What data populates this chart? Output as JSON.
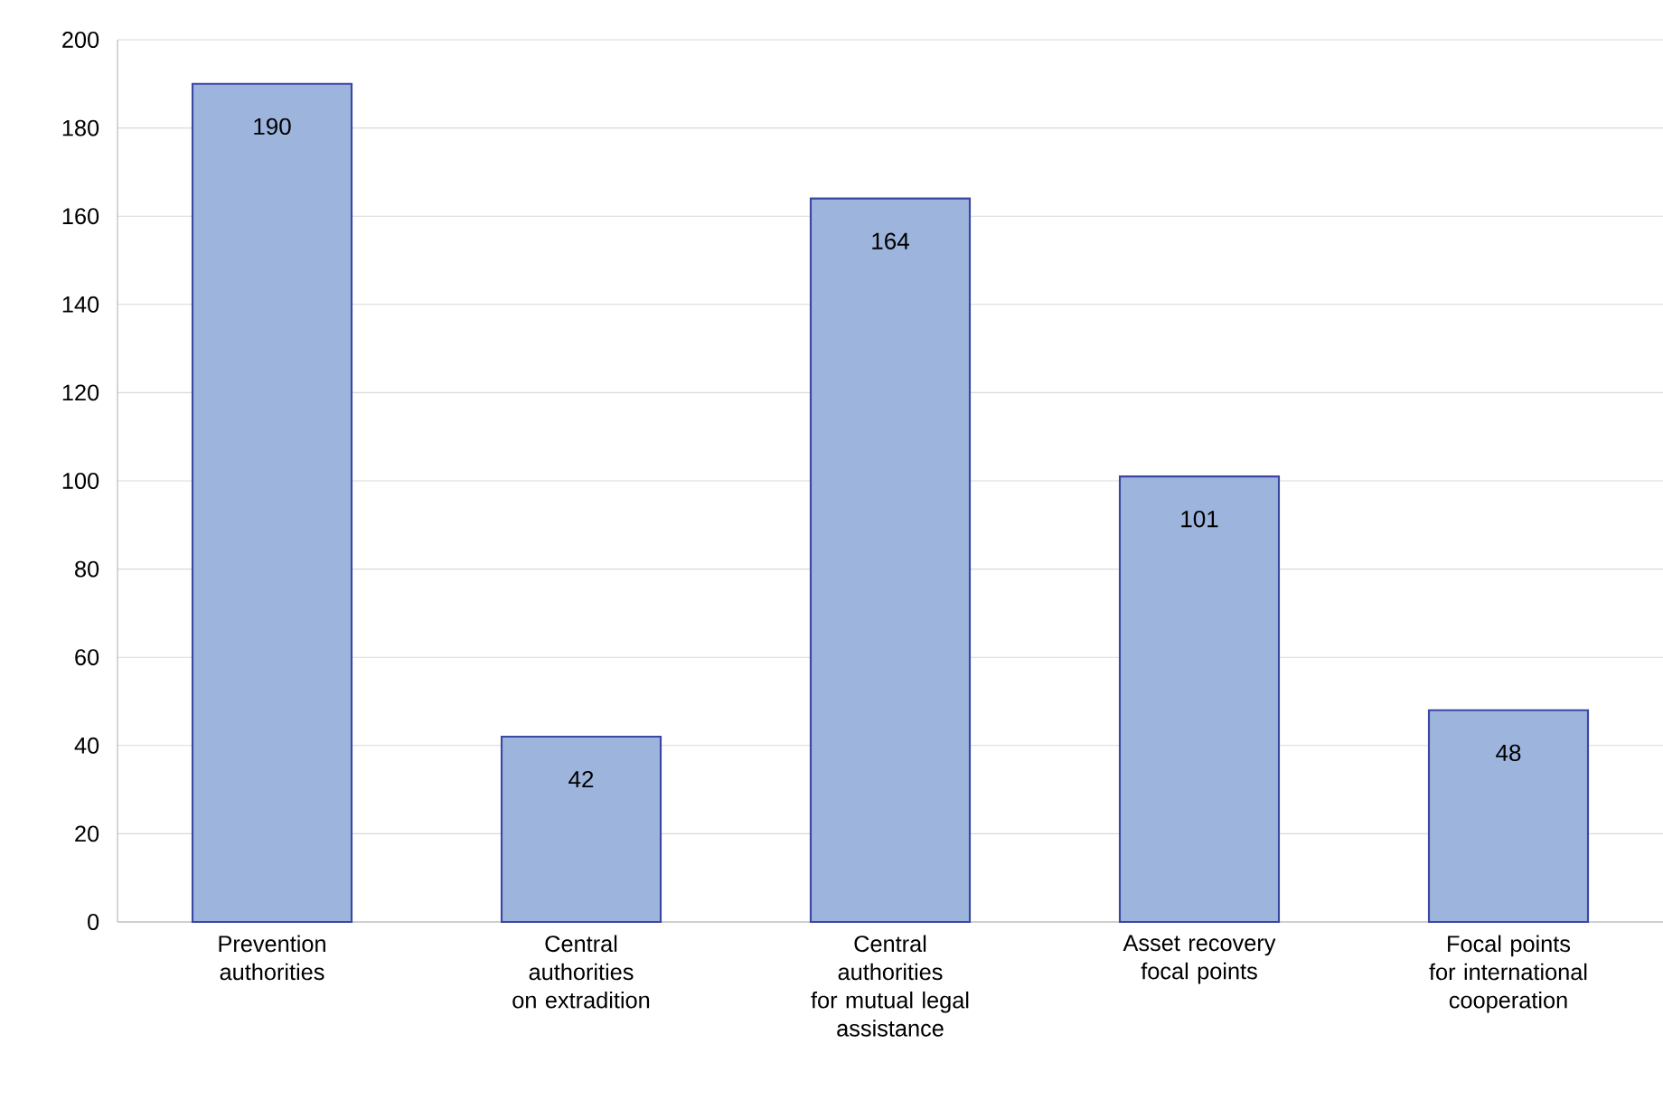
{
  "chart_data": {
    "type": "bar",
    "categories": [
      "Prevention authorities",
      "Central authorities on extradition",
      "Central authorities for mutual legal assistance",
      "Asset recovery focal points",
      "Focal points for international cooperation"
    ],
    "values": [
      190,
      42,
      164,
      101,
      48
    ],
    "color": "#9db5dc",
    "ylim": [
      0,
      200
    ],
    "yticks": [
      0,
      20,
      40,
      60,
      80,
      100,
      120,
      140,
      160,
      180,
      200
    ],
    "grid": "y",
    "data_labels": true
  }
}
